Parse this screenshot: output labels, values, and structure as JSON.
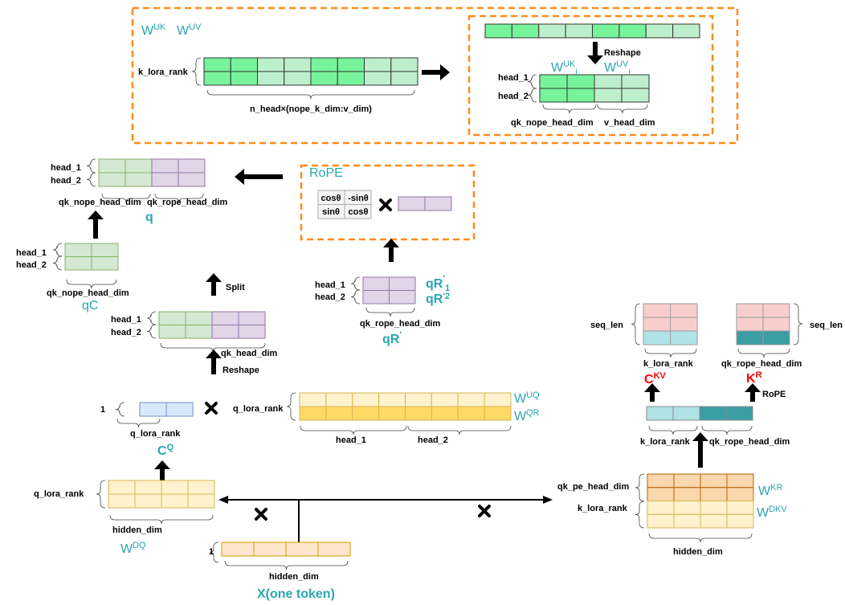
{
  "colors": {
    "accent_teal": "#2aa6b0",
    "cache_red": "#ff0000",
    "dashed_box": "#ff8c1a",
    "green_dark": "#77f49b",
    "green_light": "#bdefcc",
    "q_green": "#d5e8d4",
    "q_purple": "#e1d5e7",
    "cq_blue": "#dae8fc",
    "yellow_light": "#fff2cc",
    "yellow_dark": "#ffd966",
    "x_orange": "#ffe6cc",
    "wkr_orange": "#fad7ac",
    "pink": "#f8cecc",
    "cyan": "#b0e3e6",
    "teal_dark": "#3b9ea3",
    "rope_gray": "#f5f5f5"
  },
  "absorb": {
    "wuk": {
      "base": "W",
      "sup": "UK"
    },
    "wuv": {
      "base": "W",
      "sup": "UV"
    },
    "k_lora_rank": "k_lora_rank",
    "width_label": "n_head×(nope_k_dim:v_dim)",
    "reshape": "Reshape",
    "wuk_i": {
      "base": "W",
      "sup": "UK",
      "sub": "i"
    },
    "wuv_i": {
      "base": "W",
      "sup": "UV",
      "sub": "i"
    },
    "head_1": "head_1",
    "head_2": "head_2",
    "qk_nope_head_dim": "qk_nope_head_dim",
    "v_head_dim": "v_head_dim"
  },
  "q": {
    "head_1": "head_1",
    "head_2": "head_2",
    "qk_nope_head_dim": "qk_nope_head_dim",
    "qk_rope_head_dim": "qk_rope_head_dim",
    "name": "q"
  },
  "qc": {
    "head_1": "head_1",
    "head_2": "head_2",
    "dim": "qk_nope_head_dim",
    "name": "qC"
  },
  "split": {
    "label": "Split"
  },
  "qk": {
    "head_1": "head_1",
    "head_2": "head_2",
    "dim": "qk_head_dim",
    "reshape": "Reshape"
  },
  "rope": {
    "title": "RoPE",
    "matrix": [
      "cosθ",
      "-sinθ",
      "sinθ",
      "cosθ"
    ]
  },
  "qr": {
    "head_1": "head_1",
    "head_2": "head_2",
    "r1": {
      "base": "qR",
      "sup": "'",
      "sub": "1"
    },
    "r2": {
      "base": "qR",
      "sup": "'2"
    },
    "dim": "qk_rope_head_dim",
    "name": {
      "base": "qR",
      "sup": "'"
    }
  },
  "cq": {
    "one": "1",
    "dim": "q_lora_rank",
    "name": {
      "base": "C",
      "sup": "Q"
    }
  },
  "wuq": {
    "rank": "q_lora_rank",
    "head_1": "head_1",
    "head_2": "head_2",
    "wuq": {
      "base": "W",
      "sup": "UQ"
    },
    "wqr": {
      "base": "W",
      "sup": "QR"
    }
  },
  "wdq": {
    "rank": "q_lora_rank",
    "dim": "hidden_dim",
    "name": {
      "base": "W",
      "sup": "DQ"
    }
  },
  "x": {
    "one": "1",
    "dim": "hidden_dim",
    "name": "X(one token)"
  },
  "ckv": {
    "seq_len": "seq_len",
    "dim": "k_lora_rank",
    "name": {
      "base": "C",
      "sup": "KV"
    }
  },
  "kr": {
    "seq_len": "seq_len",
    "dim": "qk_rope_head_dim",
    "name": {
      "base": "K",
      "sup": "R"
    },
    "rope": "RoPE"
  },
  "kv_proj": {
    "k_lora_rank": "k_lora_rank",
    "qk_rope_head_dim": "qk_rope_head_dim"
  },
  "wdkv": {
    "qk_pe_head_dim": "qk_pe_head_dim",
    "k_lora_rank": "k_lora_rank",
    "dim": "hidden_dim",
    "wkr": {
      "base": "W",
      "sup": "KR"
    },
    "wdkv": {
      "base": "W",
      "sup": "DKV"
    }
  }
}
